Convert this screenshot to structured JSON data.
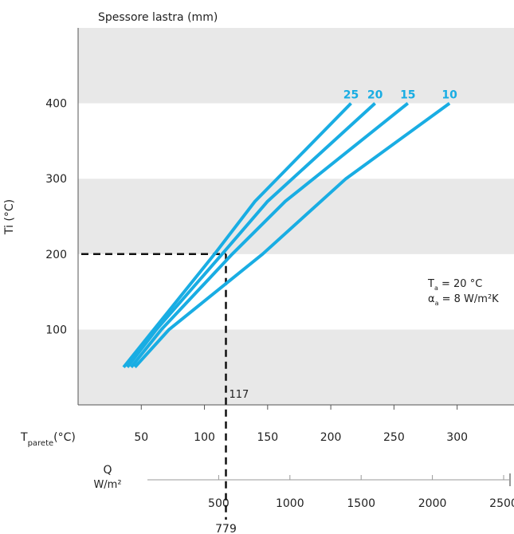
{
  "chart_data": {
    "type": "line",
    "title": "Spessore lastra (mm)",
    "ylabel": "Ti (°C)",
    "xlabel_main": "T",
    "xlabel_sub": "parete",
    "xlabel_unit": "(°C)",
    "xlim": [
      0,
      345
    ],
    "ylim": [
      0,
      500
    ],
    "x_ticks": [
      50,
      100,
      150,
      200,
      250,
      300
    ],
    "y_ticks": [
      100,
      200,
      300,
      400
    ],
    "grid": "alternating horizontal bands",
    "series": [
      {
        "name": "25",
        "points": [
          [
            36,
            50
          ],
          [
            60,
            100
          ],
          [
            108,
            200
          ],
          [
            140,
            270
          ],
          [
            216,
            400
          ]
        ]
      },
      {
        "name": "20",
        "points": [
          [
            39,
            50
          ],
          [
            62,
            100
          ],
          [
            114,
            200
          ],
          [
            150,
            270
          ],
          [
            235,
            400
          ]
        ]
      },
      {
        "name": "15",
        "points": [
          [
            42,
            50
          ],
          [
            66,
            100
          ],
          [
            122,
            200
          ],
          [
            164,
            270
          ],
          [
            261,
            400
          ]
        ]
      },
      {
        "name": "10",
        "points": [
          [
            45,
            50
          ],
          [
            72,
            100
          ],
          [
            146,
            200
          ],
          [
            212,
            300
          ],
          [
            294,
            400
          ]
        ]
      }
    ],
    "reference_line": {
      "x": 117,
      "y": 200,
      "x_label": "117"
    },
    "annotation": {
      "ta_main": "T",
      "ta_sub": "a",
      "ta_value": " = 20 °C",
      "alpha_main": "α",
      "alpha_sub": "a",
      "alpha_value": " = 8 W/m²K"
    },
    "secondary_axis": {
      "label_line1": "Q",
      "label_line2": "W/m²",
      "xlim": [
        0,
        2500
      ],
      "ticks": [
        500,
        1000,
        1500,
        2000,
        2500
      ],
      "marker_value": 779,
      "marker_label": "779"
    },
    "colors": {
      "series": "#19ade3",
      "band": "#e8e8e8",
      "axis": "#555555",
      "reference": "#111111"
    }
  }
}
